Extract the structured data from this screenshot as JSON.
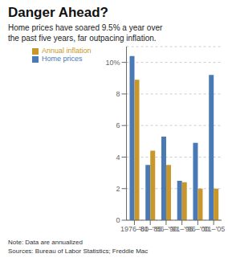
{
  "chart_data": {
    "type": "bar",
    "title": "Danger Ahead?",
    "subtitle": "Home prices have soared 9.5% a year over\nthe past five years, far outpacing inflation.",
    "categories": [
      "1976–80",
      "'81–'85",
      "'86–'90",
      "'91–'95",
      "'96–'00",
      "'01–'05"
    ],
    "series": [
      {
        "name": "Home prices",
        "color": "#4a7ab5",
        "values": [
          10.4,
          3.5,
          5.3,
          2.5,
          4.9,
          9.2
        ]
      },
      {
        "name": "Annual inflation",
        "color": "#c8962a",
        "values": [
          8.9,
          4.4,
          3.5,
          2.4,
          2.0,
          2.0
        ]
      }
    ],
    "ylim": [
      0,
      11
    ],
    "yticks": [
      0,
      2,
      4,
      6,
      8,
      {
        "value": 10,
        "label": "10%"
      }
    ],
    "grid": true,
    "legend": "upper left",
    "annotations": [
      "Note: Data are annualized",
      "Sources: Bureau of Labor Statistics; Freddie Mac"
    ]
  }
}
